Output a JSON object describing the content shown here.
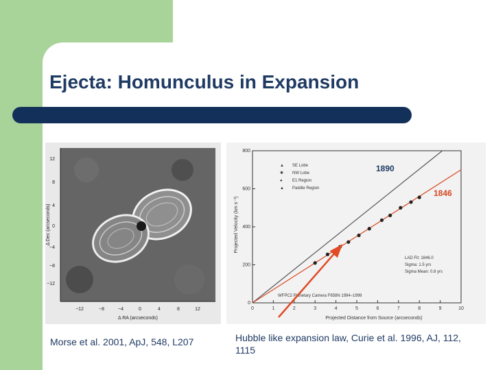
{
  "slide": {
    "title": "Ejecta: Homunculus in Expansion",
    "caption_left": "Morse et al. 2001, ApJ, 548, L207",
    "caption_right": "Hubble like expansion law, Curie et al. 1996, AJ, 112, 1115"
  },
  "image_left": {
    "ylabel": "Δ Dec (arcseconds)",
    "xlabel": "Δ RA (arcseconds)",
    "yticks": [
      "12",
      "8",
      "4",
      "0",
      "−4",
      "−8",
      "−12"
    ],
    "xticks": [
      "−12",
      "−8",
      "−4",
      "0",
      "4",
      "8",
      "12"
    ]
  },
  "chart_data": {
    "type": "scatter",
    "xlabel": "Projected Distance from Source (arcseconds)",
    "ylabel": "Projected Velocity (km s⁻¹)",
    "xlim": [
      0,
      10
    ],
    "ylim": [
      0,
      800
    ],
    "xticks": [
      "0",
      "1",
      "2",
      "3",
      "4",
      "5",
      "6",
      "7",
      "8",
      "9",
      "10"
    ],
    "yticks": [
      "0",
      "200",
      "400",
      "600",
      "800"
    ],
    "legend_placement": "top-left",
    "legend": [
      "SE Lobe",
      "NW Lobe",
      "E1 Region",
      "Paddle Region"
    ],
    "lines": [
      {
        "label": "1890",
        "x": [
          0,
          9.1
        ],
        "y": [
          0,
          800
        ],
        "color": "#555555"
      },
      {
        "label": "1846",
        "x": [
          0,
          10
        ],
        "y": [
          0,
          700
        ],
        "color": "#d9461f"
      }
    ],
    "points_x": [
      3.0,
      3.6,
      4.2,
      4.6,
      5.1,
      5.6,
      6.2,
      6.6,
      7.1,
      7.6,
      8.0
    ],
    "points_y": [
      210,
      255,
      295,
      320,
      355,
      390,
      435,
      460,
      500,
      530,
      555
    ],
    "stats": [
      "LAD Fit: 1846.0",
      "Sigma: 1.5 yrs",
      "Sigma Mean: 0.8 yrs"
    ],
    "camera_label": "WFPC2 Planetary Camera F658N 1994–1999"
  },
  "colors": {
    "accent_green": "#a8d49a",
    "title_navy": "#1f3a63",
    "bar_navy": "#12305a",
    "arrow_red": "#e04a25"
  }
}
